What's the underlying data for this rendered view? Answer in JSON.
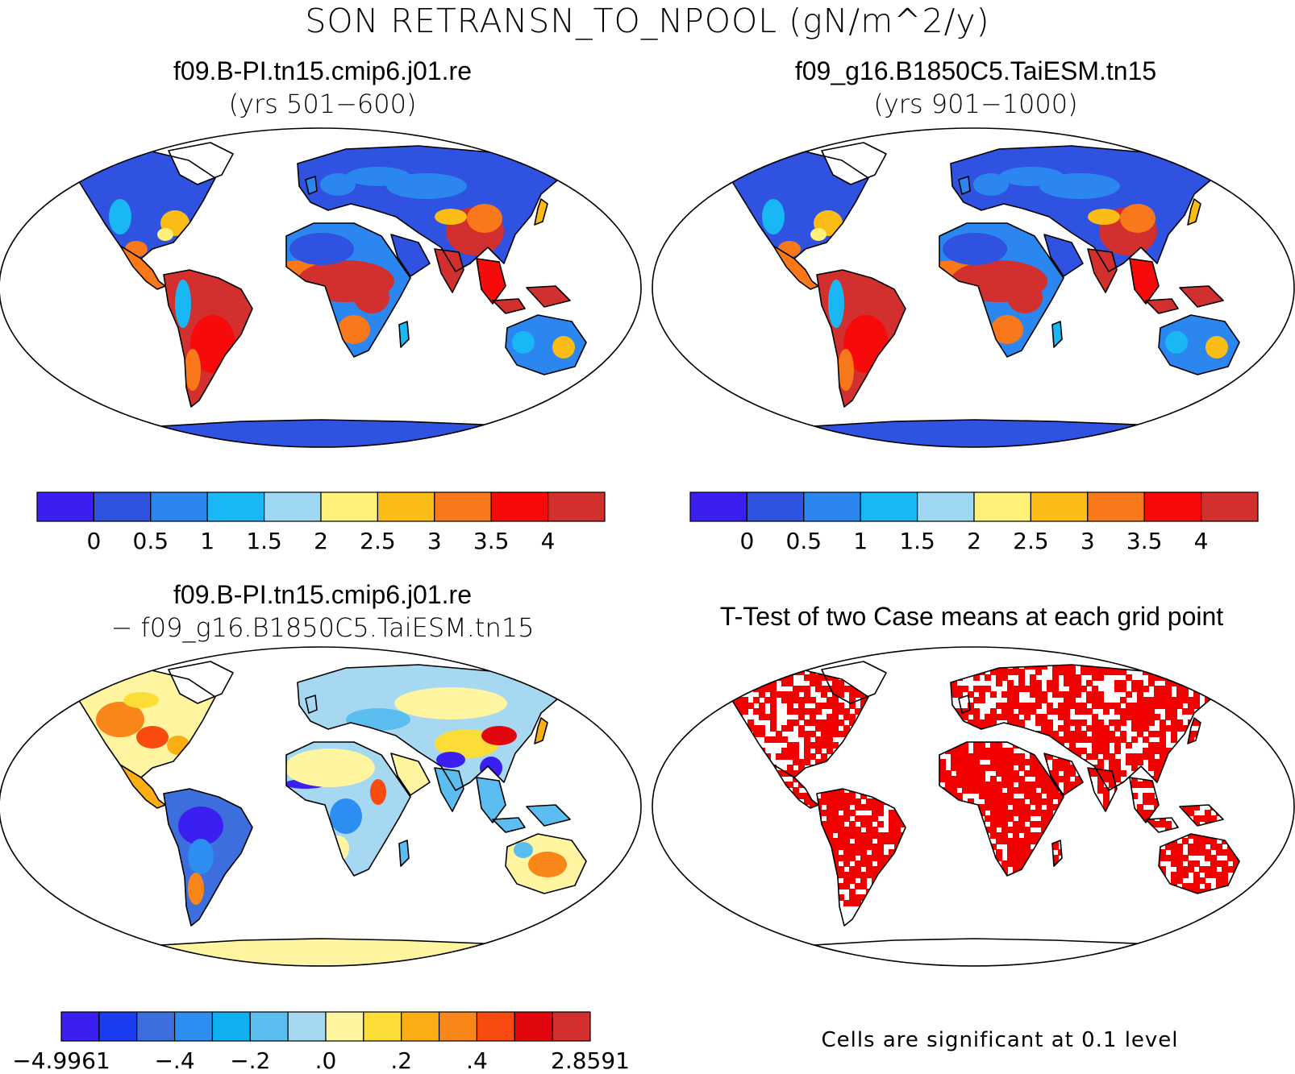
{
  "figure": {
    "title": "SON RETRANSN_TO_NPOOL (gN/m^2/y)"
  },
  "panels": [
    {
      "id": "case1",
      "title": "f09.B-PI.tn15.cmip6.j01.re",
      "subtitle": "(yrs 501−600)",
      "colorbar": {
        "colors": [
          "#3a1ff0",
          "#2f52e0",
          "#2b86ef",
          "#19b7f4",
          "#9fd8f2",
          "#fff07a",
          "#fbbc15",
          "#f9781a",
          "#f70a0a",
          "#d1302e"
        ],
        "tick_labels": [
          "0",
          "0.5",
          "1",
          "1.5",
          "2",
          "2.5",
          "3",
          "3.5",
          "4"
        ]
      }
    },
    {
      "id": "case2",
      "title": "f09_g16.B1850C5.TaiESM.tn15",
      "subtitle": "(yrs 901−1000)",
      "colorbar": {
        "colors": [
          "#3a1ff0",
          "#2f52e0",
          "#2b86ef",
          "#19b7f4",
          "#9fd8f2",
          "#fff07a",
          "#fbbc15",
          "#f9781a",
          "#f70a0a",
          "#d1302e"
        ],
        "tick_labels": [
          "0",
          "0.5",
          "1",
          "1.5",
          "2",
          "2.5",
          "3",
          "3.5",
          "4"
        ]
      }
    },
    {
      "id": "difference",
      "title": "f09.B-PI.tn15.cmip6.j01.re",
      "subtitle": "− f09_g16.B1850C5.TaiESM.tn15",
      "colorbar": {
        "colors": [
          "#3a1ff0",
          "#1b3df0",
          "#3c6fdd",
          "#2b8ef0",
          "#0fb0ef",
          "#5bbdf0",
          "#a6d8f1",
          "#fff5a0",
          "#fcdc36",
          "#fbae13",
          "#f98618",
          "#f94a10",
          "#e2060e",
          "#d1302e"
        ],
        "tick_labels": [
          "−4.9961",
          "−.4",
          "−.2",
          ".0",
          ".2",
          ".4",
          "2.8591"
        ]
      }
    },
    {
      "id": "ttest",
      "title": "T-Test of two Case means at each grid point",
      "note": "Cells are significant at 0.1 level",
      "significant_color": "#f20000"
    }
  ]
}
